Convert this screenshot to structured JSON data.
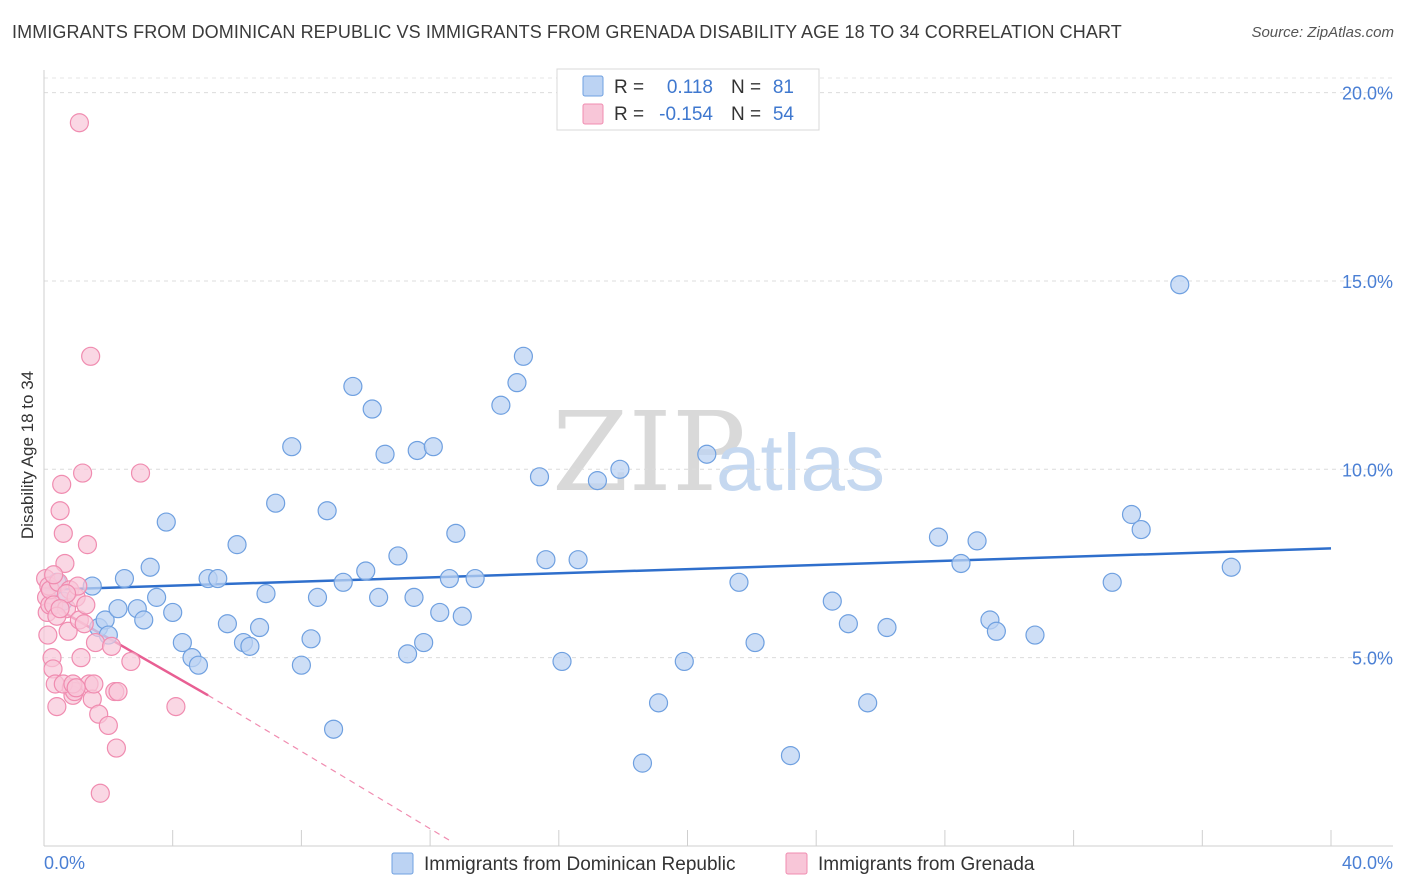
{
  "title": "IMMIGRANTS FROM DOMINICAN REPUBLIC VS IMMIGRANTS FROM GRENADA DISABILITY AGE 18 TO 34 CORRELATION CHART",
  "source": "Source: ZipAtlas.com",
  "watermark": {
    "zip": "ZIP",
    "atlas": "atlas"
  },
  "colors": {
    "blue": "#6fa0e0",
    "blue_fill": "#bcd3f3",
    "blue_line": "#2f6fcc",
    "pink": "#f08cb0",
    "pink_fill": "#f8c6d8",
    "pink_line": "#e85f93",
    "axis_text": "#4a7fd4"
  },
  "legend": [
    {
      "r_label": "R =",
      "r_value": "0.118",
      "n_label": "N =",
      "n_value": "81"
    },
    {
      "r_label": "R =",
      "r_value": "-0.154",
      "n_label": "N =",
      "n_value": "54"
    }
  ],
  "bottom_legend": [
    "Immigrants from Dominican Republic",
    "Immigrants from Grenada"
  ],
  "chart_data": {
    "type": "scatter",
    "title": "IMMIGRANTS FROM DOMINICAN REPUBLIC VS IMMIGRANTS FROM GRENADA DISABILITY AGE 18 TO 34 CORRELATION CHART",
    "xlabel": "",
    "ylabel": "Disability Age 18 to 34",
    "xlim": [
      0,
      40
    ],
    "ylim": [
      0,
      20.6
    ],
    "x_tick_labels": [
      "0.0%",
      "40.0%"
    ],
    "y_ticks": [
      5,
      10,
      15,
      20
    ],
    "y_tick_labels": [
      "5.0%",
      "10.0%",
      "15.0%",
      "20.0%"
    ],
    "series": [
      {
        "name": "Immigrants from Dominican Republic",
        "r": 0.118,
        "n": 81,
        "trend": {
          "x": [
            0,
            40
          ],
          "y": [
            6.8,
            7.9
          ],
          "dashed_extension": false
        },
        "points": [
          [
            0.2,
            6.8
          ],
          [
            0.4,
            7.0
          ],
          [
            0.6,
            6.5
          ],
          [
            1.5,
            6.9
          ],
          [
            1.7,
            5.8
          ],
          [
            1.9,
            6.0
          ],
          [
            2.0,
            5.6
          ],
          [
            2.3,
            6.3
          ],
          [
            2.5,
            7.1
          ],
          [
            2.9,
            6.3
          ],
          [
            3.1,
            6.0
          ],
          [
            3.3,
            7.4
          ],
          [
            3.5,
            6.6
          ],
          [
            3.8,
            8.6
          ],
          [
            4.0,
            6.2
          ],
          [
            4.3,
            5.4
          ],
          [
            4.6,
            5.0
          ],
          [
            4.8,
            4.8
          ],
          [
            5.1,
            7.1
          ],
          [
            5.4,
            7.1
          ],
          [
            5.7,
            5.9
          ],
          [
            6.0,
            8.0
          ],
          [
            6.2,
            5.4
          ],
          [
            6.4,
            5.3
          ],
          [
            6.7,
            5.8
          ],
          [
            6.9,
            6.7
          ],
          [
            7.2,
            9.1
          ],
          [
            7.7,
            10.6
          ],
          [
            8.0,
            4.8
          ],
          [
            8.3,
            5.5
          ],
          [
            8.5,
            6.6
          ],
          [
            8.8,
            8.9
          ],
          [
            9.0,
            3.1
          ],
          [
            9.3,
            7.0
          ],
          [
            9.6,
            12.2
          ],
          [
            10.0,
            7.3
          ],
          [
            10.2,
            11.6
          ],
          [
            10.4,
            6.6
          ],
          [
            10.6,
            10.4
          ],
          [
            11.0,
            7.7
          ],
          [
            11.3,
            5.1
          ],
          [
            11.6,
            10.5
          ],
          [
            11.8,
            5.4
          ],
          [
            12.1,
            10.6
          ],
          [
            12.3,
            6.2
          ],
          [
            12.6,
            7.1
          ],
          [
            12.8,
            8.3
          ],
          [
            13.0,
            6.1
          ],
          [
            13.4,
            7.1
          ],
          [
            14.2,
            11.7
          ],
          [
            14.7,
            12.3
          ],
          [
            14.9,
            13.0
          ],
          [
            15.4,
            9.8
          ],
          [
            15.6,
            7.6
          ],
          [
            16.1,
            4.9
          ],
          [
            16.6,
            7.6
          ],
          [
            17.2,
            9.7
          ],
          [
            17.9,
            10.0
          ],
          [
            18.6,
            2.2
          ],
          [
            19.1,
            3.8
          ],
          [
            19.9,
            4.9
          ],
          [
            20.6,
            10.4
          ],
          [
            21.6,
            7.0
          ],
          [
            22.1,
            5.4
          ],
          [
            23.2,
            2.4
          ],
          [
            24.5,
            6.5
          ],
          [
            25.0,
            5.9
          ],
          [
            25.6,
            3.8
          ],
          [
            26.2,
            5.8
          ],
          [
            27.8,
            8.2
          ],
          [
            28.5,
            7.5
          ],
          [
            29.0,
            8.1
          ],
          [
            29.4,
            6.0
          ],
          [
            29.6,
            5.7
          ],
          [
            30.8,
            5.6
          ],
          [
            33.2,
            7.0
          ],
          [
            33.8,
            8.8
          ],
          [
            34.1,
            8.4
          ],
          [
            35.3,
            14.9
          ],
          [
            36.9,
            7.4
          ],
          [
            11.5,
            6.6
          ]
        ]
      },
      {
        "name": "Immigrants from Grenada",
        "r": -0.154,
        "n": 54,
        "trend": {
          "x": [
            0,
            5.1
          ],
          "y": [
            6.5,
            4.0
          ],
          "dashed_to": [
            12.7,
            0.1
          ]
        },
        "points": [
          [
            0.05,
            7.1
          ],
          [
            0.08,
            6.6
          ],
          [
            0.1,
            6.2
          ],
          [
            0.12,
            5.6
          ],
          [
            0.15,
            6.9
          ],
          [
            0.18,
            6.4
          ],
          [
            0.2,
            6.8
          ],
          [
            0.25,
            5.0
          ],
          [
            0.28,
            4.7
          ],
          [
            0.3,
            6.4
          ],
          [
            0.35,
            4.3
          ],
          [
            0.4,
            3.7
          ],
          [
            0.45,
            7.0
          ],
          [
            0.5,
            8.9
          ],
          [
            0.55,
            9.6
          ],
          [
            0.6,
            8.3
          ],
          [
            0.65,
            7.5
          ],
          [
            0.7,
            6.3
          ],
          [
            0.75,
            5.7
          ],
          [
            0.8,
            6.8
          ],
          [
            0.85,
            4.2
          ],
          [
            0.9,
            4.0
          ],
          [
            0.95,
            4.1
          ],
          [
            1.0,
            6.6
          ],
          [
            1.05,
            6.9
          ],
          [
            1.1,
            6.0
          ],
          [
            1.15,
            5.0
          ],
          [
            1.2,
            9.9
          ],
          [
            1.25,
            5.9
          ],
          [
            1.3,
            6.4
          ],
          [
            1.35,
            8.0
          ],
          [
            1.4,
            4.3
          ],
          [
            1.45,
            13.0
          ],
          [
            1.5,
            3.9
          ],
          [
            1.55,
            4.3
          ],
          [
            1.6,
            5.4
          ],
          [
            1.7,
            3.5
          ],
          [
            1.75,
            1.4
          ],
          [
            1.1,
            19.2
          ],
          [
            2.0,
            3.2
          ],
          [
            2.1,
            5.3
          ],
          [
            2.2,
            4.1
          ],
          [
            2.25,
            2.6
          ],
          [
            2.3,
            4.1
          ],
          [
            2.7,
            4.9
          ],
          [
            3.0,
            9.9
          ],
          [
            4.1,
            3.7
          ],
          [
            0.6,
            4.3
          ],
          [
            0.4,
            6.1
          ],
          [
            0.7,
            6.7
          ],
          [
            0.9,
            4.3
          ],
          [
            0.3,
            7.2
          ],
          [
            0.5,
            6.3
          ],
          [
            1.0,
            4.2
          ]
        ]
      }
    ]
  }
}
